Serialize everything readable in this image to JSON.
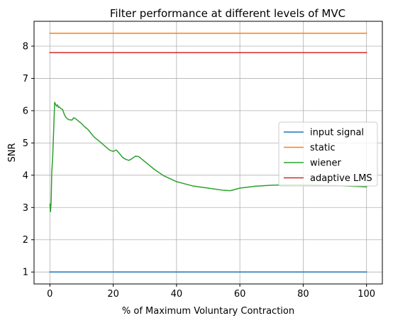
{
  "chart_data": {
    "type": "line",
    "title": "Filter performance at different levels of MVC",
    "xlabel": "% of Maximum Voluntary Contraction",
    "ylabel": "SNR",
    "xlim": [
      -5,
      105
    ],
    "ylim": [
      0.63,
      8.77
    ],
    "xticks": [
      0,
      20,
      40,
      60,
      80,
      100
    ],
    "yticks": [
      1,
      2,
      3,
      4,
      5,
      6,
      7,
      8
    ],
    "grid": true,
    "legend_position": "center-right",
    "series": [
      {
        "name": "input signal",
        "color": "#1f77b4",
        "x": [
          0,
          100
        ],
        "y": [
          1.0,
          1.0
        ]
      },
      {
        "name": "static",
        "color": "#ff7f0e",
        "x": [
          0,
          100
        ],
        "y": [
          8.4,
          8.4
        ]
      },
      {
        "name": "wiener",
        "color": "#2ca02c",
        "x": [
          0,
          0.2,
          0.4,
          0.6,
          0.9,
          1.2,
          1.5,
          1.8,
          2.1,
          2.4,
          2.7,
          3.0,
          3.5,
          4.0,
          4.5,
          5.0,
          5.5,
          6.0,
          7.0,
          7.5,
          8.0,
          9.0,
          10,
          11,
          12,
          13,
          14,
          16,
          18,
          19,
          20,
          21,
          22,
          23,
          24,
          25,
          26,
          27,
          28,
          30,
          33,
          36,
          40,
          45,
          50,
          55,
          57,
          60,
          65,
          70,
          75,
          80,
          85,
          90,
          95,
          100
        ],
        "y": [
          3.1,
          2.87,
          3.2,
          4.1,
          4.6,
          5.4,
          6.26,
          6.2,
          6.14,
          6.18,
          6.1,
          6.12,
          6.06,
          6.04,
          5.9,
          5.8,
          5.75,
          5.72,
          5.71,
          5.78,
          5.76,
          5.68,
          5.6,
          5.5,
          5.42,
          5.3,
          5.18,
          5.02,
          4.85,
          4.77,
          4.74,
          4.78,
          4.67,
          4.55,
          4.49,
          4.46,
          4.52,
          4.59,
          4.58,
          4.42,
          4.18,
          3.98,
          3.8,
          3.67,
          3.6,
          3.53,
          3.52,
          3.6,
          3.66,
          3.69,
          3.7,
          3.7,
          3.69,
          3.68,
          3.66,
          3.64
        ]
      },
      {
        "name": "adaptive LMS",
        "color": "#d62728",
        "x": [
          0,
          100
        ],
        "y": [
          7.8,
          7.8
        ]
      }
    ]
  }
}
